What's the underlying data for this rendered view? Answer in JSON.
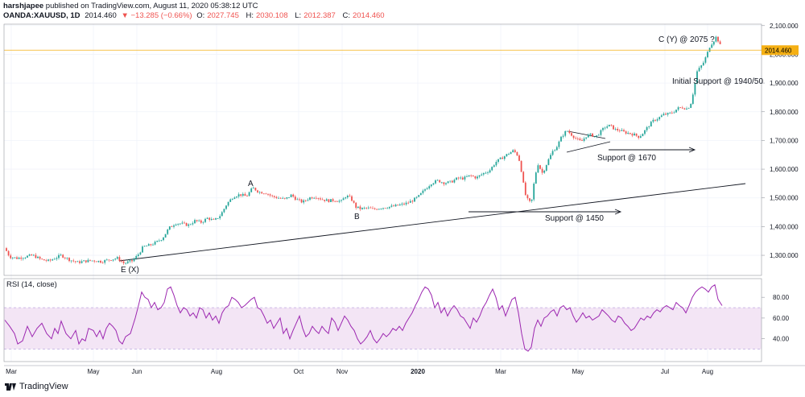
{
  "header": {
    "publisher_line": "harshjapee published on TradingView.com, August 11, 2020 05:38:12 UTC",
    "publisher_name": "harshjapee",
    "publisher_rest": " published on TradingView.com, August 11, 2020 05:38:12 UTC",
    "symbol": "OANDA:XAUUSD, 1D",
    "last": "2014.460",
    "change": "▼ −13.285 (−0.66%)",
    "o_label": "O:",
    "o": "2027.745",
    "h_label": "H:",
    "h": "2030.108",
    "l_label": "L:",
    "l": "2012.387",
    "c_label": "C:",
    "c": "2014.460"
  },
  "footer": {
    "brand": "TradingView",
    "icon": "tradingview-logo-icon"
  },
  "colors": {
    "up": "#26a69a",
    "down": "#ef5350",
    "rsi": "#9c27b0",
    "rsi_band": "#f3e5f5",
    "price_line": "#f5b014",
    "price_tag_bg": "#f5b014"
  },
  "chart_data": [
    {
      "type": "candlestick",
      "x_tick_labels": [
        "Mar",
        "May",
        "Jun",
        "Aug",
        "Oct",
        "Nov",
        "2020",
        "Mar",
        "May",
        "Jul",
        "Aug"
      ],
      "y_tick_labels": [
        "2,100.000",
        "2,000.000",
        "1,900.000",
        "1,800.000",
        "1,700.000",
        "1,600.000",
        "1,500.000",
        "1,400.000",
        "1,300.000"
      ],
      "ylim": [
        1230,
        2105
      ],
      "last_price_label": "2014.460",
      "close_path": [
        [
          0,
          1325
        ],
        [
          6,
          1295
        ],
        [
          15,
          1290
        ],
        [
          25,
          1295
        ],
        [
          35,
          1300
        ],
        [
          45,
          1285
        ],
        [
          55,
          1280
        ],
        [
          62,
          1290
        ],
        [
          70,
          1300
        ],
        [
          80,
          1285
        ],
        [
          90,
          1275
        ],
        [
          100,
          1280
        ],
        [
          110,
          1282
        ],
        [
          120,
          1278
        ],
        [
          130,
          1285
        ],
        [
          140,
          1290
        ],
        [
          148,
          1272
        ],
        [
          158,
          1280
        ],
        [
          165,
          1300
        ],
        [
          172,
          1330
        ],
        [
          180,
          1335
        ],
        [
          188,
          1345
        ],
        [
          196,
          1360
        ],
        [
          204,
          1395
        ],
        [
          212,
          1412
        ],
        [
          220,
          1410
        ],
        [
          228,
          1405
        ],
        [
          236,
          1420
        ],
        [
          244,
          1415
        ],
        [
          252,
          1430
        ],
        [
          260,
          1420
        ],
        [
          268,
          1440
        ],
        [
          276,
          1480
        ],
        [
          284,
          1505
        ],
        [
          292,
          1512
        ],
        [
          300,
          1505
        ],
        [
          308,
          1535
        ],
        [
          316,
          1520
        ],
        [
          324,
          1518
        ],
        [
          332,
          1505
        ],
        [
          340,
          1500
        ],
        [
          348,
          1495
        ],
        [
          356,
          1510
        ],
        [
          362,
          1495
        ],
        [
          370,
          1485
        ],
        [
          378,
          1500
        ],
        [
          386,
          1505
        ],
        [
          394,
          1495
        ],
        [
          402,
          1490
        ],
        [
          410,
          1492
        ],
        [
          418,
          1488
        ],
        [
          424,
          1508
        ],
        [
          430,
          1498
        ],
        [
          436,
          1468
        ],
        [
          442,
          1462
        ],
        [
          450,
          1465
        ],
        [
          458,
          1460
        ],
        [
          466,
          1465
        ],
        [
          474,
          1468
        ],
        [
          482,
          1470
        ],
        [
          490,
          1475
        ],
        [
          498,
          1480
        ],
        [
          506,
          1490
        ],
        [
          514,
          1505
        ],
        [
          522,
          1530
        ],
        [
          530,
          1552
        ],
        [
          538,
          1560
        ],
        [
          546,
          1552
        ],
        [
          554,
          1555
        ],
        [
          562,
          1568
        ],
        [
          570,
          1568
        ],
        [
          578,
          1578
        ],
        [
          586,
          1570
        ],
        [
          594,
          1585
        ],
        [
          602,
          1595
        ],
        [
          610,
          1625
        ],
        [
          618,
          1640
        ],
        [
          626,
          1655
        ],
        [
          632,
          1665
        ],
        [
          638,
          1645
        ],
        [
          642,
          1590
        ],
        [
          646,
          1515
        ],
        [
          650,
          1490
        ],
        [
          654,
          1480
        ],
        [
          658,
          1565
        ],
        [
          662,
          1620
        ],
        [
          668,
          1585
        ],
        [
          674,
          1625
        ],
        [
          680,
          1660
        ],
        [
          686,
          1680
        ],
        [
          692,
          1715
        ],
        [
          698,
          1735
        ],
        [
          704,
          1720
        ],
        [
          710,
          1705
        ],
        [
          716,
          1695
        ],
        [
          722,
          1715
        ],
        [
          728,
          1720
        ],
        [
          734,
          1712
        ],
        [
          740,
          1730
        ],
        [
          746,
          1748
        ],
        [
          752,
          1752
        ],
        [
          758,
          1738
        ],
        [
          764,
          1735
        ],
        [
          770,
          1728
        ],
        [
          776,
          1725
        ],
        [
          782,
          1720
        ],
        [
          788,
          1712
        ],
        [
          794,
          1730
        ],
        [
          800,
          1752
        ],
        [
          806,
          1770
        ],
        [
          812,
          1778
        ],
        [
          818,
          1790
        ],
        [
          824,
          1792
        ],
        [
          830,
          1798
        ],
        [
          836,
          1812
        ],
        [
          842,
          1815
        ],
        [
          848,
          1810
        ],
        [
          852,
          1828
        ],
        [
          856,
          1878
        ],
        [
          860,
          1940
        ],
        [
          864,
          1955
        ],
        [
          868,
          1972
        ],
        [
          872,
          1998
        ],
        [
          876,
          2030
        ],
        [
          880,
          2045
        ],
        [
          884,
          2062
        ],
        [
          888,
          2035
        ],
        [
          891,
          2014
        ]
      ],
      "annotations": [
        {
          "text": "E (X)"
        },
        {
          "text": "A"
        },
        {
          "text": "B"
        },
        {
          "text": "Support @ 1450"
        },
        {
          "text": "Support @ 1670"
        },
        {
          "text": "C (Y) @ 2075 ?"
        },
        {
          "text": "Initial Support @ 1940/50"
        }
      ]
    },
    {
      "type": "line",
      "title": "RSI (14, close)",
      "y_tick_labels": [
        "80.00",
        "60.00",
        "40.00"
      ],
      "ylim": [
        18,
        98
      ],
      "band": [
        30,
        70
      ],
      "rsi_path": [
        [
          0,
          58
        ],
        [
          6,
          52
        ],
        [
          12,
          45
        ],
        [
          16,
          35
        ],
        [
          22,
          38
        ],
        [
          28,
          52
        ],
        [
          34,
          42
        ],
        [
          40,
          50
        ],
        [
          46,
          55
        ],
        [
          52,
          45
        ],
        [
          58,
          40
        ],
        [
          62,
          50
        ],
        [
          66,
          45
        ],
        [
          70,
          57
        ],
        [
          76,
          45
        ],
        [
          82,
          40
        ],
        [
          88,
          48
        ],
        [
          92,
          35
        ],
        [
          96,
          40
        ],
        [
          100,
          38
        ],
        [
          104,
          50
        ],
        [
          110,
          48
        ],
        [
          114,
          42
        ],
        [
          118,
          48
        ],
        [
          122,
          40
        ],
        [
          126,
          50
        ],
        [
          130,
          55
        ],
        [
          134,
          52
        ],
        [
          138,
          48
        ],
        [
          142,
          38
        ],
        [
          146,
          35
        ],
        [
          150,
          42
        ],
        [
          156,
          45
        ],
        [
          162,
          60
        ],
        [
          166,
          72
        ],
        [
          170,
          85
        ],
        [
          174,
          80
        ],
        [
          178,
          78
        ],
        [
          182,
          70
        ],
        [
          186,
          75
        ],
        [
          190,
          68
        ],
        [
          194,
          70
        ],
        [
          198,
          75
        ],
        [
          202,
          88
        ],
        [
          206,
          90
        ],
        [
          210,
          82
        ],
        [
          214,
          72
        ],
        [
          218,
          65
        ],
        [
          222,
          70
        ],
        [
          226,
          68
        ],
        [
          230,
          62
        ],
        [
          234,
          65
        ],
        [
          238,
          60
        ],
        [
          242,
          70
        ],
        [
          246,
          68
        ],
        [
          250,
          60
        ],
        [
          254,
          65
        ],
        [
          258,
          58
        ],
        [
          262,
          62
        ],
        [
          266,
          55
        ],
        [
          270,
          65
        ],
        [
          274,
          70
        ],
        [
          278,
          72
        ],
        [
          282,
          80
        ],
        [
          286,
          78
        ],
        [
          290,
          75
        ],
        [
          294,
          70
        ],
        [
          298,
          72
        ],
        [
          302,
          75
        ],
        [
          306,
          78
        ],
        [
          310,
          80
        ],
        [
          314,
          70
        ],
        [
          318,
          68
        ],
        [
          322,
          62
        ],
        [
          326,
          55
        ],
        [
          330,
          58
        ],
        [
          334,
          50
        ],
        [
          338,
          55
        ],
        [
          342,
          60
        ],
        [
          346,
          45
        ],
        [
          350,
          50
        ],
        [
          354,
          40
        ],
        [
          358,
          48
        ],
        [
          362,
          55
        ],
        [
          366,
          62
        ],
        [
          370,
          50
        ],
        [
          374,
          42
        ],
        [
          378,
          45
        ],
        [
          382,
          52
        ],
        [
          386,
          48
        ],
        [
          390,
          45
        ],
        [
          394,
          52
        ],
        [
          398,
          48
        ],
        [
          402,
          45
        ],
        [
          406,
          60
        ],
        [
          410,
          56
        ],
        [
          414,
          48
        ],
        [
          418,
          55
        ],
        [
          422,
          62
        ],
        [
          426,
          58
        ],
        [
          430,
          52
        ],
        [
          434,
          48
        ],
        [
          438,
          40
        ],
        [
          442,
          35
        ],
        [
          446,
          38
        ],
        [
          450,
          42
        ],
        [
          454,
          48
        ],
        [
          458,
          40
        ],
        [
          462,
          36
        ],
        [
          466,
          40
        ],
        [
          470,
          45
        ],
        [
          474,
          42
        ],
        [
          478,
          45
        ],
        [
          482,
          50
        ],
        [
          486,
          48
        ],
        [
          490,
          52
        ],
        [
          494,
          48
        ],
        [
          498,
          55
        ],
        [
          502,
          60
        ],
        [
          506,
          65
        ],
        [
          510,
          72
        ],
        [
          514,
          78
        ],
        [
          518,
          85
        ],
        [
          522,
          90
        ],
        [
          526,
          88
        ],
        [
          530,
          82
        ],
        [
          534,
          70
        ],
        [
          538,
          75
        ],
        [
          542,
          65
        ],
        [
          546,
          70
        ],
        [
          550,
          62
        ],
        [
          554,
          68
        ],
        [
          558,
          72
        ],
        [
          562,
          68
        ],
        [
          566,
          62
        ],
        [
          570,
          60
        ],
        [
          574,
          55
        ],
        [
          578,
          50
        ],
        [
          582,
          60
        ],
        [
          586,
          56
        ],
        [
          590,
          62
        ],
        [
          594,
          70
        ],
        [
          598,
          75
        ],
        [
          602,
          82
        ],
        [
          606,
          88
        ],
        [
          610,
          80
        ],
        [
          614,
          68
        ],
        [
          618,
          72
        ],
        [
          622,
          62
        ],
        [
          626,
          70
        ],
        [
          630,
          78
        ],
        [
          634,
          80
        ],
        [
          638,
          65
        ],
        [
          642,
          45
        ],
        [
          646,
          30
        ],
        [
          650,
          28
        ],
        [
          654,
          32
        ],
        [
          658,
          50
        ],
        [
          662,
          58
        ],
        [
          666,
          52
        ],
        [
          670,
          60
        ],
        [
          674,
          62
        ],
        [
          678,
          66
        ],
        [
          682,
          68
        ],
        [
          686,
          62
        ],
        [
          690,
          70
        ],
        [
          694,
          72
        ],
        [
          698,
          68
        ],
        [
          702,
          70
        ],
        [
          706,
          62
        ],
        [
          710,
          56
        ],
        [
          714,
          60
        ],
        [
          718,
          65
        ],
        [
          722,
          60
        ],
        [
          726,
          62
        ],
        [
          730,
          58
        ],
        [
          734,
          60
        ],
        [
          738,
          62
        ],
        [
          742,
          68
        ],
        [
          746,
          65
        ],
        [
          750,
          62
        ],
        [
          754,
          58
        ],
        [
          758,
          56
        ],
        [
          762,
          62
        ],
        [
          766,
          60
        ],
        [
          770,
          55
        ],
        [
          774,
          52
        ],
        [
          778,
          48
        ],
        [
          782,
          50
        ],
        [
          786,
          55
        ],
        [
          790,
          60
        ],
        [
          794,
          58
        ],
        [
          798,
          62
        ],
        [
          802,
          60
        ],
        [
          806,
          65
        ],
        [
          810,
          68
        ],
        [
          814,
          66
        ],
        [
          818,
          70
        ],
        [
          822,
          72
        ],
        [
          826,
          70
        ],
        [
          830,
          68
        ],
        [
          834,
          75
        ],
        [
          838,
          72
        ],
        [
          842,
          70
        ],
        [
          846,
          65
        ],
        [
          850,
          72
        ],
        [
          854,
          80
        ],
        [
          858,
          85
        ],
        [
          862,
          88
        ],
        [
          866,
          90
        ],
        [
          870,
          88
        ],
        [
          874,
          85
        ],
        [
          878,
          90
        ],
        [
          882,
          92
        ],
        [
          886,
          78
        ],
        [
          891,
          72
        ]
      ]
    }
  ]
}
